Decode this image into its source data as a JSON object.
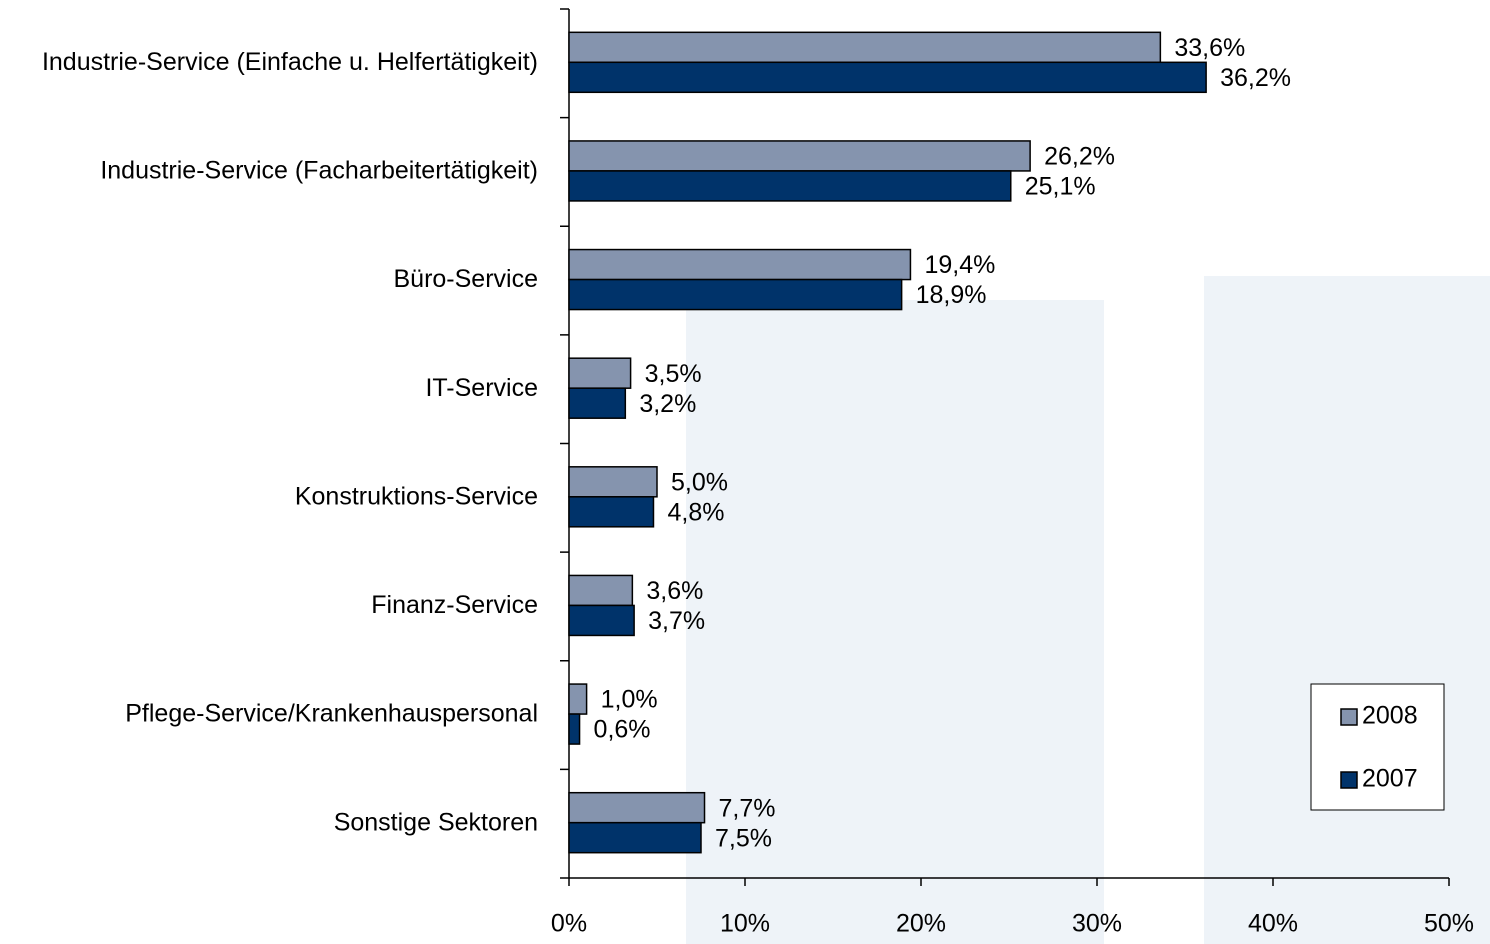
{
  "chart_data": {
    "type": "bar",
    "orientation": "horizontal",
    "categories": [
      "Industrie-Service (Einfache u. Helfertätigkeit)",
      "Industrie-Service (Facharbeitertätigkeit)",
      "Büro-Service",
      "IT-Service",
      "Konstruktions-Service",
      "Finanz-Service",
      "Pflege-Service/Krankenhauspersonal",
      "Sonstige Sektoren"
    ],
    "series": [
      {
        "name": "2008",
        "color": "#8594ae",
        "values": [
          33.6,
          26.2,
          19.4,
          3.5,
          5.0,
          3.6,
          1.0,
          7.7
        ],
        "value_labels": [
          "33,6%",
          "26,2%",
          "19,4%",
          "3,5%",
          "5,0%",
          "3,6%",
          "1,0%",
          "7,7%"
        ]
      },
      {
        "name": "2007",
        "color": "#00336a",
        "values": [
          36.2,
          25.1,
          18.9,
          3.2,
          4.8,
          3.7,
          0.6,
          7.5
        ],
        "value_labels": [
          "36,2%",
          "25,1%",
          "18,9%",
          "3,2%",
          "4,8%",
          "3,7%",
          "0,6%",
          "7,5%"
        ]
      }
    ],
    "xlim": [
      0,
      50
    ],
    "xticks": [
      {
        "value": 0,
        "label": "0%"
      },
      {
        "value": 10,
        "label": "10%"
      },
      {
        "value": 20,
        "label": "20%"
      },
      {
        "value": 30,
        "label": "30%"
      },
      {
        "value": 40,
        "label": "40%"
      },
      {
        "value": 50,
        "label": "50%"
      }
    ],
    "legend": "lower right"
  }
}
